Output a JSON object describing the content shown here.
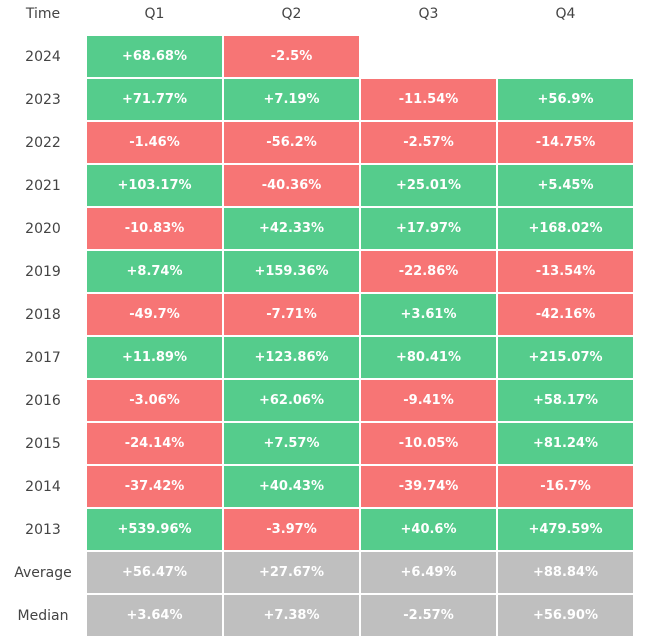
{
  "table": {
    "header": [
      "Time",
      "Q1",
      "Q2",
      "Q3",
      "Q4"
    ],
    "rows": [
      [
        "2024",
        "+68.68%",
        "-2.5%"
      ],
      [
        "2023",
        "+71.77%",
        "+7.19%",
        "-11.54%",
        "+56.9%"
      ],
      [
        "2022",
        "-1.46%",
        "-56.2%",
        "-2.57%",
        "-14.75%"
      ],
      [
        "2021",
        "+103.17%",
        "-40.36%",
        "+25.01%",
        "+5.45%"
      ],
      [
        "2020",
        "-10.83%",
        "+42.33%",
        "+17.97%",
        "+168.02%"
      ],
      [
        "2019",
        "+8.74%",
        "+159.36%",
        "-22.86%",
        "-13.54%"
      ],
      [
        "2018",
        "-49.7%",
        "-7.71%",
        "+3.61%",
        "-42.16%"
      ],
      [
        "2017",
        "+11.89%",
        "+123.86%",
        "+80.41%",
        "+215.07%"
      ],
      [
        "2016",
        "-3.06%",
        "+62.06%",
        "-9.41%",
        "+58.17%"
      ],
      [
        "2015",
        "-24.14%",
        "+7.57%",
        "-10.05%",
        "+81.24%"
      ],
      [
        "2014",
        "-37.42%",
        "+40.43%",
        "-39.74%",
        "-16.7%"
      ],
      [
        "2013",
        "+539.96%",
        "-3.97%",
        "+40.6%",
        "+479.59%"
      ]
    ],
    "summary": [
      [
        "Average",
        "+56.47%",
        "+27.67%",
        "+6.49%",
        "+88.84%"
      ],
      [
        "Median",
        "+3.64%",
        "+7.38%",
        "-2.57%",
        "+56.90%"
      ]
    ],
    "colors": {
      "positive": "#55cc8c",
      "negative": "#f77575",
      "summary": "#bfbfbf"
    }
  }
}
